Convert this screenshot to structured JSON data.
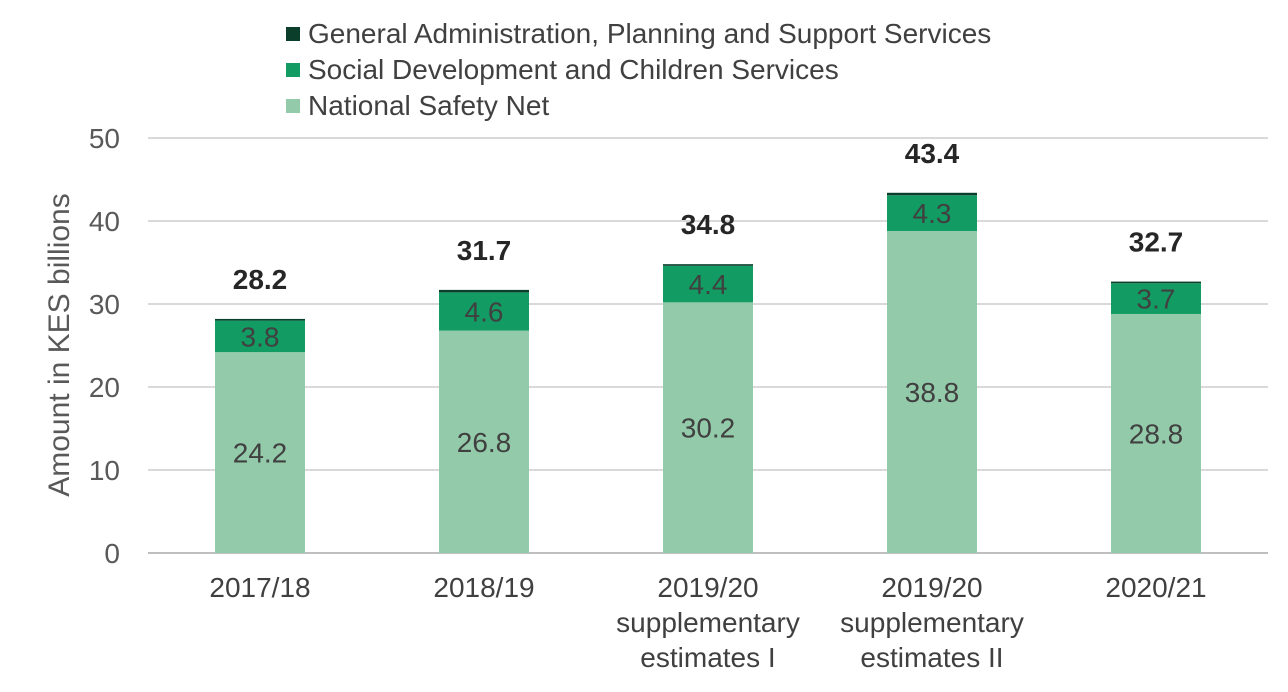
{
  "chart_data": {
    "type": "bar",
    "stacked": true,
    "categories": [
      "2017/18",
      "2018/19",
      "2019/20 supplementary estimates I",
      "2019/20 supplementary estimates II",
      "2020/21"
    ],
    "category_lines": [
      [
        "2017/18"
      ],
      [
        "2018/19"
      ],
      [
        "2019/20",
        "supplementary",
        "estimates I"
      ],
      [
        "2019/20",
        "supplementary",
        "estimates II"
      ],
      [
        "2020/21"
      ]
    ],
    "series": [
      {
        "name": "National Safety Net",
        "values": [
          24.2,
          26.8,
          30.2,
          38.8,
          28.8
        ],
        "color": "#93cbaa",
        "labels": [
          "24.2",
          "26.8",
          "30.2",
          "38.8",
          "28.8"
        ]
      },
      {
        "name": "Social Development and Children Services",
        "values": [
          3.8,
          4.6,
          4.4,
          4.3,
          3.7
        ],
        "color": "#129b62",
        "labels": [
          "3.8",
          "4.6",
          "4.4",
          "4.3",
          "3.7"
        ]
      },
      {
        "name": "General Administration, Planning and Support Services",
        "values": [
          0.2,
          0.3,
          0.2,
          0.3,
          0.2
        ],
        "color": "#0b3f2c",
        "labels": [
          "",
          "",
          "",
          "",
          ""
        ]
      }
    ],
    "totals": [
      "28.2",
      "31.7",
      "34.8",
      "43.4",
      "32.7"
    ],
    "ylabel": "Amount in KES billions",
    "ylim": [
      0,
      50
    ],
    "yticks": [
      0,
      10,
      20,
      30,
      40,
      50
    ],
    "grid": true,
    "legend_position": "top"
  }
}
